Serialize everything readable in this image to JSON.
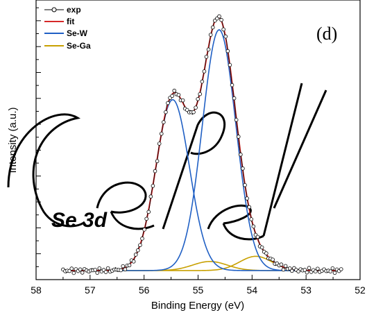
{
  "chart_data": {
    "type": "line",
    "xlabel": "Binding Energy (eV)",
    "ylabel": "Intensity (a.u.)",
    "xlim": [
      58,
      52
    ],
    "ylim": [
      0,
      1.08
    ],
    "x_reversed": true,
    "x_ticks": [
      58,
      57,
      56,
      55,
      54,
      53,
      52
    ],
    "x_tick_labels": [
      "58",
      "57",
      "56",
      "55",
      "54",
      "53",
      "52"
    ],
    "y_tick_labels_shown": false,
    "panel_label": "(d)",
    "annotation": "Se 3d",
    "legend_position": "top-left",
    "baseline": 0.035,
    "x_range": [
      57.5,
      52.35
    ],
    "series": [
      {
        "name": "exp",
        "color": "#000000",
        "style": "line+open-circles"
      },
      {
        "name": "fit",
        "color": "#d62828",
        "style": "line"
      },
      {
        "name": "Se-W",
        "color": "#1f5fc4",
        "style": "line"
      },
      {
        "name": "Se-Ga",
        "color": "#c8a000",
        "style": "line"
      }
    ],
    "components": {
      "Se-W": [
        {
          "center": 55.47,
          "height": 0.66,
          "sigma": 0.31
        },
        {
          "center": 54.61,
          "height": 0.93,
          "sigma": 0.31
        }
      ],
      "Se-Ga": [
        {
          "center": 54.78,
          "height": 0.035,
          "sigma": 0.32
        },
        {
          "center": 53.93,
          "height": 0.055,
          "sigma": 0.3
        }
      ]
    }
  }
}
